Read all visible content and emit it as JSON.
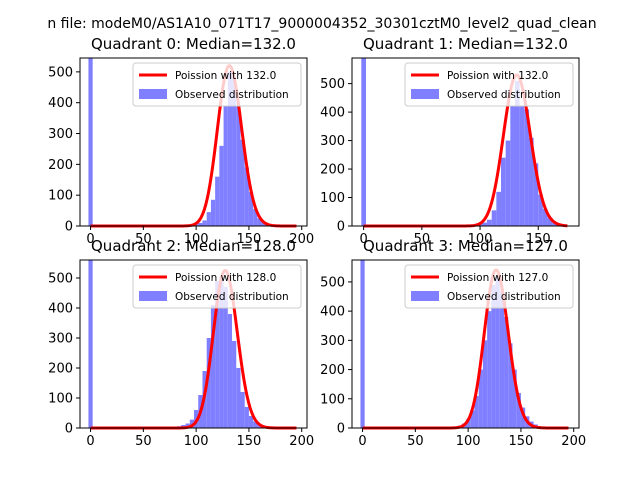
{
  "suptitle": "n file: modeM0/AS1A10_071T17_9000004352_30301cztM0_level2_quad_clean",
  "colors": {
    "hist": "#7f7fff",
    "fit": "#ff0000",
    "axis": "#000000"
  },
  "legend_labels": {
    "observed": "Observed distribution"
  },
  "chart_data": [
    {
      "type": "bar",
      "title": "Quadrant 0: Median=132.0",
      "median": 132.0,
      "fit_label": "Poission with 132.0",
      "xlim": [
        -10,
        205
      ],
      "ylim": [
        0,
        545
      ],
      "xticks": [
        0,
        50,
        100,
        150,
        200
      ],
      "yticks": [
        0,
        100,
        200,
        300,
        400,
        500
      ],
      "bin_width": 4,
      "bins": [
        [
          -2,
          545
        ],
        [
          86,
          2
        ],
        [
          90,
          3
        ],
        [
          94,
          4
        ],
        [
          98,
          8
        ],
        [
          102,
          10
        ],
        [
          106,
          18
        ],
        [
          110,
          45
        ],
        [
          114,
          85
        ],
        [
          118,
          160
        ],
        [
          122,
          260
        ],
        [
          126,
          390
        ],
        [
          130,
          500
        ],
        [
          134,
          480
        ],
        [
          138,
          390
        ],
        [
          142,
          280
        ],
        [
          146,
          190
        ],
        [
          150,
          110
        ],
        [
          154,
          55
        ],
        [
          158,
          25
        ],
        [
          162,
          12
        ],
        [
          166,
          6
        ],
        [
          170,
          3
        ],
        [
          174,
          2
        ]
      ],
      "fit_range": [
        0,
        195
      ]
    },
    {
      "type": "bar",
      "title": "Quadrant 1: Median=132.0",
      "median": 132.0,
      "fit_label": "Poission with 132.0",
      "xlim": [
        -10,
        185
      ],
      "ylim": [
        0,
        590
      ],
      "xticks": [
        0,
        50,
        100,
        150
      ],
      "yticks": [
        0,
        100,
        200,
        300,
        400,
        500
      ],
      "bin_width": 4,
      "bins": [
        [
          -2,
          590
        ],
        [
          86,
          2
        ],
        [
          90,
          3
        ],
        [
          94,
          5
        ],
        [
          98,
          8
        ],
        [
          102,
          12
        ],
        [
          106,
          22
        ],
        [
          110,
          55
        ],
        [
          114,
          120
        ],
        [
          118,
          240
        ],
        [
          122,
          300
        ],
        [
          126,
          420
        ],
        [
          130,
          510
        ],
        [
          134,
          420
        ],
        [
          138,
          410
        ],
        [
          142,
          310
        ],
        [
          146,
          220
        ],
        [
          150,
          110
        ],
        [
          154,
          60
        ],
        [
          158,
          30
        ],
        [
          162,
          12
        ],
        [
          166,
          6
        ],
        [
          170,
          3
        ]
      ],
      "fit_range": [
        0,
        175
      ]
    },
    {
      "type": "bar",
      "title": "Quadrant 2: Median=128.0",
      "median": 128.0,
      "fit_label": "Poission with 128.0",
      "xlim": [
        -10,
        205
      ],
      "ylim": [
        0,
        560
      ],
      "xticks": [
        0,
        50,
        100,
        150,
        200
      ],
      "yticks": [
        0,
        100,
        200,
        300,
        400,
        500
      ],
      "bin_width": 4,
      "bins": [
        [
          -2,
          560
        ],
        [
          62,
          2
        ],
        [
          74,
          3
        ],
        [
          82,
          6
        ],
        [
          86,
          10
        ],
        [
          90,
          15
        ],
        [
          94,
          28
        ],
        [
          98,
          60
        ],
        [
          102,
          110
        ],
        [
          106,
          190
        ],
        [
          110,
          300
        ],
        [
          114,
          410
        ],
        [
          118,
          490
        ],
        [
          122,
          505
        ],
        [
          126,
          470
        ],
        [
          130,
          380
        ],
        [
          134,
          290
        ],
        [
          138,
          200
        ],
        [
          142,
          120
        ],
        [
          146,
          70
        ],
        [
          150,
          40
        ],
        [
          154,
          22
        ],
        [
          158,
          12
        ],
        [
          162,
          6
        ],
        [
          166,
          3
        ],
        [
          170,
          2
        ]
      ],
      "fit_range": [
        0,
        195
      ]
    },
    {
      "type": "bar",
      "title": "Quadrant 3: Median=127.0",
      "median": 127.0,
      "fit_label": "Poission with 127.0",
      "xlim": [
        -10,
        205
      ],
      "ylim": [
        0,
        575
      ],
      "xticks": [
        0,
        50,
        100,
        150,
        200
      ],
      "yticks": [
        0,
        100,
        200,
        300,
        400,
        500
      ],
      "bin_width": 4,
      "bins": [
        [
          -2,
          575
        ],
        [
          82,
          2
        ],
        [
          86,
          4
        ],
        [
          90,
          8
        ],
        [
          94,
          15
        ],
        [
          98,
          30
        ],
        [
          102,
          60
        ],
        [
          106,
          110
        ],
        [
          110,
          200
        ],
        [
          114,
          300
        ],
        [
          118,
          400
        ],
        [
          122,
          490
        ],
        [
          126,
          520
        ],
        [
          130,
          470
        ],
        [
          134,
          380
        ],
        [
          138,
          290
        ],
        [
          142,
          200
        ],
        [
          146,
          120
        ],
        [
          150,
          70
        ],
        [
          154,
          40
        ],
        [
          158,
          22
        ],
        [
          162,
          12
        ],
        [
          166,
          6
        ],
        [
          170,
          3
        ],
        [
          174,
          2
        ]
      ],
      "fit_range": [
        0,
        195
      ]
    }
  ]
}
